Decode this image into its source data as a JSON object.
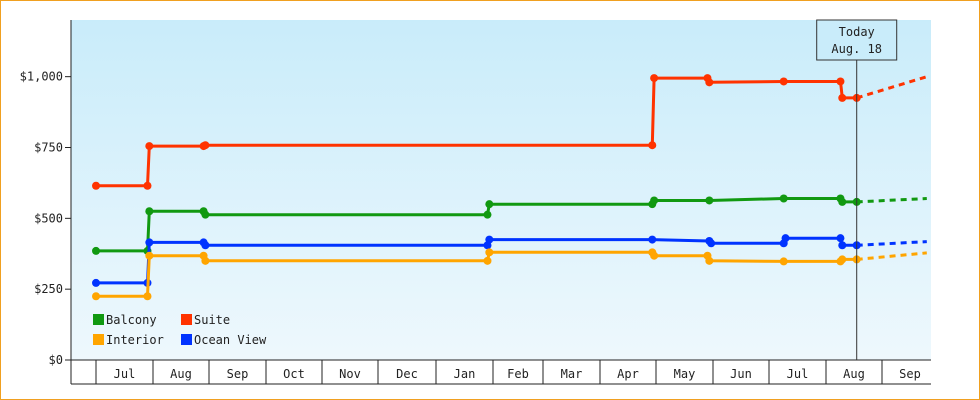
{
  "chart_data": {
    "type": "line",
    "title": "",
    "xlabel": "",
    "ylabel": "",
    "ylim": [
      0,
      1200
    ],
    "y_ticks": [
      {
        "value": 0,
        "label": "$0"
      },
      {
        "value": 250,
        "label": "$250"
      },
      {
        "value": 500,
        "label": "$500"
      },
      {
        "value": 750,
        "label": "$750"
      },
      {
        "value": 1000,
        "label": "$1,000"
      }
    ],
    "month_labels": [
      "Jul",
      "Aug",
      "Sep",
      "Oct",
      "Nov",
      "Dec",
      "Jan",
      "Feb",
      "Mar",
      "Apr",
      "May",
      "Jun",
      "Jul",
      "Aug",
      "Sep"
    ],
    "grid": false,
    "legend_position": "bottom-left",
    "today_marker": {
      "line1": "Today",
      "line2": "Aug. 18"
    },
    "series": [
      {
        "name": "Suite",
        "color": "#ff3300",
        "points": [
          [
            "2021-07-01",
            615
          ],
          [
            "2021-07-29",
            615
          ],
          [
            "2021-07-30",
            755
          ],
          [
            "2021-08-29",
            755
          ],
          [
            "2021-08-30",
            758
          ],
          [
            "2022-04-29",
            758
          ],
          [
            "2022-04-30",
            995
          ],
          [
            "2022-05-29",
            995
          ],
          [
            "2022-05-30",
            980
          ],
          [
            "2022-07-09",
            983
          ],
          [
            "2022-08-09",
            983
          ],
          [
            "2022-08-10",
            925
          ],
          [
            "2022-08-18",
            925
          ]
        ],
        "forecast": [
          [
            "2022-08-18",
            925
          ],
          [
            "2022-09-25",
            1000
          ]
        ]
      },
      {
        "name": "Balcony",
        "color": "#119911",
        "points": [
          [
            "2021-07-01",
            385
          ],
          [
            "2021-07-29",
            385
          ],
          [
            "2021-07-30",
            525
          ],
          [
            "2021-08-29",
            525
          ],
          [
            "2021-08-30",
            513
          ],
          [
            "2022-01-29",
            513
          ],
          [
            "2022-01-30",
            550
          ],
          [
            "2022-04-29",
            550
          ],
          [
            "2022-04-30",
            563
          ],
          [
            "2022-05-30",
            563
          ],
          [
            "2022-07-09",
            570
          ],
          [
            "2022-08-09",
            570
          ],
          [
            "2022-08-10",
            558
          ],
          [
            "2022-08-18",
            558
          ]
        ],
        "forecast": [
          [
            "2022-08-18",
            558
          ],
          [
            "2022-09-25",
            570
          ]
        ]
      },
      {
        "name": "Ocean View",
        "color": "#0033ff",
        "points": [
          [
            "2021-07-01",
            272
          ],
          [
            "2021-07-29",
            272
          ],
          [
            "2021-07-30",
            415
          ],
          [
            "2021-08-29",
            415
          ],
          [
            "2021-08-30",
            405
          ],
          [
            "2022-01-29",
            405
          ],
          [
            "2022-01-30",
            425
          ],
          [
            "2022-04-29",
            425
          ],
          [
            "2022-05-30",
            420
          ],
          [
            "2022-05-31",
            412
          ],
          [
            "2022-07-09",
            412
          ],
          [
            "2022-07-10",
            430
          ],
          [
            "2022-08-09",
            430
          ],
          [
            "2022-08-10",
            405
          ],
          [
            "2022-08-18",
            405
          ]
        ],
        "forecast": [
          [
            "2022-08-18",
            405
          ],
          [
            "2022-09-25",
            418
          ]
        ]
      },
      {
        "name": "Interior",
        "color": "#ffa500",
        "points": [
          [
            "2021-07-01",
            225
          ],
          [
            "2021-07-29",
            225
          ],
          [
            "2021-07-30",
            368
          ],
          [
            "2021-08-29",
            368
          ],
          [
            "2021-08-30",
            350
          ],
          [
            "2022-01-29",
            350
          ],
          [
            "2022-01-30",
            380
          ],
          [
            "2022-04-29",
            380
          ],
          [
            "2022-04-30",
            368
          ],
          [
            "2022-05-29",
            368
          ],
          [
            "2022-05-30",
            350
          ],
          [
            "2022-07-09",
            348
          ],
          [
            "2022-08-09",
            348
          ],
          [
            "2022-08-10",
            355
          ],
          [
            "2022-08-18",
            355
          ]
        ],
        "forecast": [
          [
            "2022-08-18",
            355
          ],
          [
            "2022-09-25",
            378
          ]
        ]
      }
    ],
    "legend": [
      {
        "name": "Balcony",
        "color": "#119911"
      },
      {
        "name": "Suite",
        "color": "#ff3300"
      },
      {
        "name": "Interior",
        "color": "#ffa500"
      },
      {
        "name": "Ocean View",
        "color": "#0033ff"
      }
    ]
  }
}
